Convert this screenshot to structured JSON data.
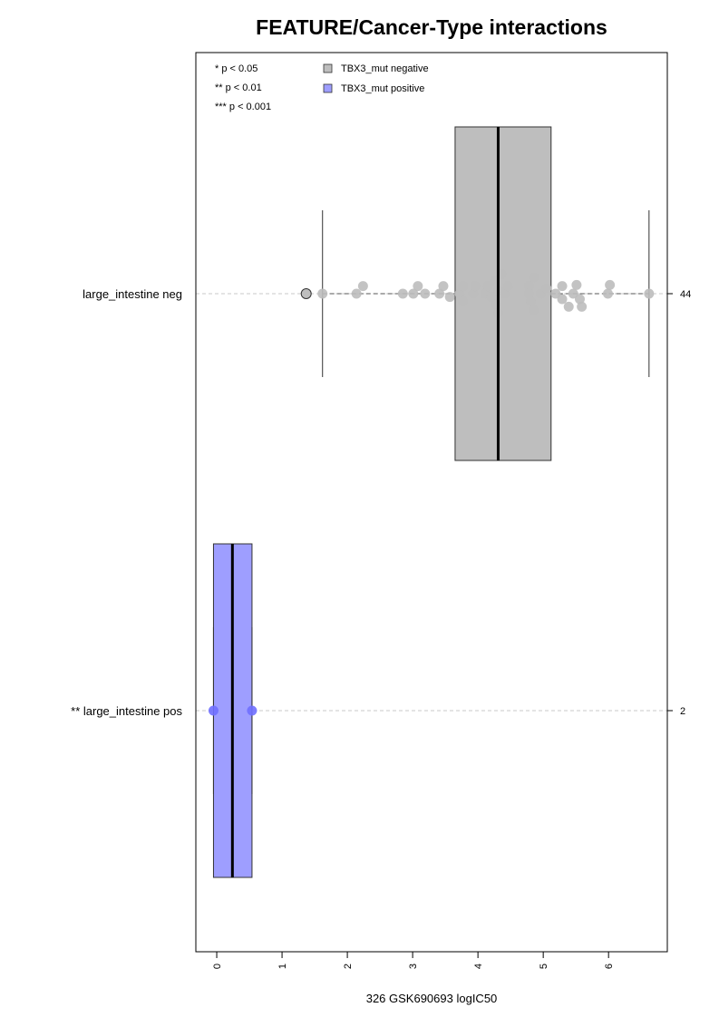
{
  "chart_data": {
    "type": "box",
    "title": "FEATURE/Cancer-Type interactions",
    "xlabel": "326 GSK690693 logIC50",
    "ylabel": "",
    "xlim": [
      -0.32,
      6.9
    ],
    "x_ticks": [
      0,
      1,
      2,
      3,
      4,
      5,
      6
    ],
    "significance_legend": [
      "* p < 0.05",
      "** p < 0.01",
      "*** p < 0.001"
    ],
    "legend": [
      {
        "label": "TBX3_mut negative",
        "color": "#bebebe"
      },
      {
        "label": "TBX3_mut positive",
        "color": "#9e9eff"
      }
    ],
    "groups": [
      {
        "label": "large_intestine neg",
        "count": "44",
        "fill": "#bebebe",
        "point_color": "#bcbcbc",
        "box": {
          "q1": 3.65,
          "median": 4.31,
          "q3": 5.12,
          "whisker_low": 1.62,
          "whisker_high": 6.62
        },
        "outliers": [
          1.37
        ],
        "points": [
          {
            "x": 1.62,
            "j": 0.0
          },
          {
            "x": 2.14,
            "j": 0.0
          },
          {
            "x": 2.24,
            "j": 0.7
          },
          {
            "x": 2.85,
            "j": 0.0
          },
          {
            "x": 3.01,
            "j": 0.0
          },
          {
            "x": 3.08,
            "j": 0.7
          },
          {
            "x": 3.19,
            "j": 0.0
          },
          {
            "x": 3.41,
            "j": 0.0
          },
          {
            "x": 3.47,
            "j": 0.7
          },
          {
            "x": 3.57,
            "j": -0.3
          },
          {
            "x": 3.72,
            "j": 0.0
          },
          {
            "x": 3.77,
            "j": 0.7
          },
          {
            "x": 3.77,
            "j": -0.7
          },
          {
            "x": 3.93,
            "j": 0.0
          },
          {
            "x": 3.96,
            "j": 0.7
          },
          {
            "x": 4.11,
            "j": 0.0
          },
          {
            "x": 4.15,
            "j": 0.7
          },
          {
            "x": 4.21,
            "j": -0.3
          },
          {
            "x": 4.26,
            "j": 1.2
          },
          {
            "x": 4.28,
            "j": -1.0
          },
          {
            "x": 4.31,
            "j": 0.3
          },
          {
            "x": 4.31,
            "j": -1.8
          },
          {
            "x": 4.36,
            "j": 1.8
          },
          {
            "x": 4.41,
            "j": 0.0
          },
          {
            "x": 4.46,
            "j": 0.7
          },
          {
            "x": 4.78,
            "j": 0.7
          },
          {
            "x": 4.78,
            "j": 0.0
          },
          {
            "x": 4.81,
            "j": -0.7
          },
          {
            "x": 4.85,
            "j": -1.5
          },
          {
            "x": 4.86,
            "j": 1.5
          },
          {
            "x": 4.96,
            "j": 0.0
          },
          {
            "x": 5.05,
            "j": 0.5
          },
          {
            "x": 5.19,
            "j": 0.0
          },
          {
            "x": 5.29,
            "j": 0.7
          },
          {
            "x": 5.29,
            "j": -0.5
          },
          {
            "x": 5.39,
            "j": -1.2
          },
          {
            "x": 5.46,
            "j": 0.0
          },
          {
            "x": 5.51,
            "j": 0.8
          },
          {
            "x": 5.56,
            "j": -0.5
          },
          {
            "x": 5.59,
            "j": -1.2
          },
          {
            "x": 5.99,
            "j": 0.0
          },
          {
            "x": 6.02,
            "j": 0.8
          },
          {
            "x": 6.62,
            "j": 0.0
          }
        ]
      },
      {
        "label": "** large_intestine pos",
        "count": "2",
        "fill": "#9e9eff",
        "point_color": "#6f6fff",
        "box": {
          "q1": -0.05,
          "median": 0.24,
          "q3": 0.54,
          "whisker_low": -0.05,
          "whisker_high": 0.54
        },
        "outliers": [],
        "points": [
          {
            "x": -0.05,
            "j": 0.0
          },
          {
            "x": 0.54,
            "j": 0.0
          }
        ]
      }
    ]
  }
}
